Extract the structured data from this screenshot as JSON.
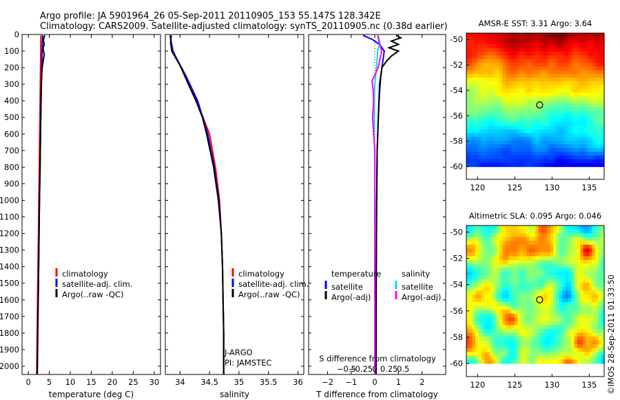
{
  "header": {
    "line1": "Argo profile: JA 5901964_26 05-Sep-2011 20110905_153 55.147S 128.342E",
    "line2": "Climatology: CARS2009. Satellite-adjusted climatology: synTS_20110905.nc (0.38d earlier)"
  },
  "watermark": "©IMOS 28-Sep-2011 01:33:50",
  "colors": {
    "climatology": "#ff0000",
    "satellite": "#0000ff",
    "argo": "#000000",
    "salinity_satellite": "#00e0e0",
    "salinity_argo": "#ff00ff"
  },
  "chart_data": [
    {
      "type": "line",
      "panel": "temperature",
      "xlabel": "temperature (deg C)",
      "xlim": [
        -1.5,
        31.5
      ],
      "xticks": [
        0,
        5,
        10,
        15,
        20,
        25,
        30
      ],
      "xtick_labels": [
        "0",
        "5",
        "10",
        "15",
        "20",
        "25",
        "30"
      ],
      "ylim": [
        0,
        2050
      ],
      "yticks": [
        0,
        100,
        200,
        300,
        400,
        500,
        600,
        700,
        800,
        900,
        1000,
        1100,
        1200,
        1300,
        1400,
        1500,
        1600,
        1700,
        1800,
        1900,
        2000
      ],
      "ytick_labels": [
        "0",
        "100",
        "200",
        "300",
        "400",
        "500",
        "600",
        "700",
        "800",
        "900",
        "1000",
        "1100",
        "1200",
        "1300",
        "1400",
        "1500",
        "1600",
        "1700",
        "1800",
        "1900",
        "2000"
      ],
      "legend": {
        "placement": "middle-right",
        "entries": [
          "climatology",
          "satellite-adj. clim.",
          "Argo(..raw -QC)"
        ]
      },
      "series": [
        {
          "name": "climatology",
          "color": "#ff0000",
          "depth": [
            5,
            100,
            200,
            400,
            600,
            800,
            1000,
            1200,
            1400,
            1600,
            1800,
            2050
          ],
          "values": [
            3.0,
            2.95,
            2.9,
            2.8,
            2.7,
            2.6,
            2.5,
            2.4,
            2.3,
            2.2,
            2.1,
            2.0
          ]
        },
        {
          "name": "satellite-adj. clim.",
          "color": "#0000ff",
          "depth": [
            5,
            100,
            200,
            400,
            600,
            800,
            1000,
            1200,
            1400,
            1600,
            1800,
            2050
          ],
          "values": [
            3.4,
            3.3,
            3.2,
            3.05,
            2.9,
            2.8,
            2.65,
            2.55,
            2.45,
            2.35,
            2.25,
            2.15
          ]
        },
        {
          "name": "Argo(..raw -QC)",
          "color": "#000000",
          "depth": [
            5,
            20,
            40,
            60,
            80,
            100,
            120,
            150,
            200,
            300,
            400,
            600,
            800,
            1000,
            1200,
            1400,
            1600,
            1800,
            2050
          ],
          "values": [
            3.9,
            3.7,
            3.6,
            3.8,
            3.5,
            3.6,
            3.8,
            3.6,
            3.3,
            3.1,
            3.0,
            2.9,
            2.8,
            2.65,
            2.55,
            2.45,
            2.35,
            2.25,
            2.1
          ]
        }
      ]
    },
    {
      "type": "line",
      "panel": "salinity",
      "xlabel": "salinity",
      "xlim": [
        33.75,
        36.1
      ],
      "xticks": [
        34,
        34.5,
        35,
        35.5,
        36
      ],
      "xtick_labels": [
        "34",
        "34.5",
        "35",
        "35.5",
        "36"
      ],
      "ylim": [
        0,
        2050
      ],
      "legend": {
        "placement": "middle-right",
        "entries": [
          "climatology",
          "satellite-adj. clim.",
          "Argo(..raw -QC)"
        ]
      },
      "annotations": [
        "J-ARGO",
        "PI: JAMSTEC"
      ],
      "series": [
        {
          "name": "climatology",
          "color": "#ff0000",
          "depth": [
            5,
            100,
            150,
            250,
            400,
            600,
            800,
            1000,
            1200,
            1400,
            1600,
            1800,
            2050
          ],
          "values": [
            33.83,
            33.87,
            33.95,
            34.08,
            34.28,
            34.5,
            34.6,
            34.67,
            34.7,
            34.72,
            34.73,
            34.74,
            34.74
          ]
        },
        {
          "name": "satellite-adj. clim.",
          "color": "#0000ff",
          "depth": [
            5,
            100,
            150,
            250,
            400,
            600,
            800,
            1000,
            1200,
            1400,
            1600,
            1800,
            2050
          ],
          "values": [
            33.83,
            33.88,
            33.95,
            34.1,
            34.3,
            34.47,
            34.58,
            34.66,
            34.7,
            34.72,
            34.73,
            34.74,
            34.74
          ]
        },
        {
          "name": "Argo(..raw -QC)",
          "color": "#000000",
          "depth": [
            5,
            50,
            100,
            150,
            200,
            250,
            300,
            400,
            500,
            600,
            800,
            1000,
            1200,
            1400,
            1600,
            1800,
            2050
          ],
          "values": [
            33.85,
            33.84,
            33.86,
            33.94,
            34.02,
            34.08,
            34.14,
            34.27,
            34.38,
            34.45,
            34.57,
            34.65,
            34.7,
            34.72,
            34.73,
            34.74,
            34.74
          ]
        }
      ]
    },
    {
      "type": "line",
      "panel": "difference",
      "xlabel": "T difference from climatology",
      "xlim": [
        -2.8,
        3.0
      ],
      "xticks": [
        -2,
        -1,
        0,
        1,
        2
      ],
      "xtick_labels": [
        "−2",
        "−1",
        "0",
        "1",
        "2"
      ],
      "secondary_xlabel": "S difference from climatology",
      "secondary_xticks": [
        -0.5,
        -0.25,
        0,
        0.25,
        0.5
      ],
      "secondary_xtick_labels": [
        "−0.5",
        "−0.25",
        "0",
        "0.25",
        "0.5"
      ],
      "ylim": [
        0,
        2050
      ],
      "legend": {
        "placement": "middle",
        "temperature_title": "temperature",
        "salinity_title": "salinity",
        "entries": [
          "satellite",
          "Argo(-adj)",
          "satellite",
          "Argo(-adj)"
        ]
      },
      "series": [
        {
          "name": "temperature satellite",
          "color": "#0000ff",
          "depth": [
            5,
            30,
            60,
            100,
            150,
            200,
            300,
            500,
            700,
            1000,
            1500,
            2050
          ],
          "values": [
            -0.5,
            -0.1,
            0.2,
            0.4,
            0.35,
            0.3,
            0.2,
            0.15,
            0.1,
            0.08,
            0.06,
            0.05
          ]
        },
        {
          "name": "temperature Argo(-adj)",
          "color": "#000000",
          "depth": [
            5,
            20,
            40,
            60,
            80,
            100,
            130,
            160,
            200,
            260,
            350,
            500,
            700,
            1000,
            1500,
            2050
          ],
          "values": [
            0.9,
            1.1,
            0.7,
            1.0,
            0.6,
            1.0,
            0.7,
            0.5,
            0.3,
            0.25,
            0.2,
            0.15,
            0.1,
            0.08,
            0.06,
            0.05
          ]
        },
        {
          "name": "salinity satellite",
          "color": "#00e0e0",
          "depth": [
            5,
            50,
            100,
            200,
            300,
            400,
            600,
            800,
            1000,
            1500,
            2050
          ],
          "values": [
            0.06,
            0.09,
            0.05,
            0.03,
            0.0,
            -0.01,
            -0.01,
            0.0,
            0.0,
            0.0,
            0.0
          ]
        },
        {
          "name": "salinity Argo(-adj)",
          "color": "#ff00ff",
          "depth": [
            5,
            50,
            100,
            200,
            280,
            330,
            400,
            500,
            600,
            700,
            800,
            1000,
            1500,
            2050
          ],
          "values": [
            0.05,
            0.08,
            0.12,
            0.06,
            -0.05,
            -0.03,
            -0.02,
            -0.04,
            -0.02,
            0.0,
            0.0,
            0.0,
            0.0,
            0.0
          ]
        }
      ]
    },
    {
      "type": "heatmap",
      "panel": "sst_map",
      "title": "AMSR-E SST: 3.31  Argo: 3.64",
      "xlim": [
        118.5,
        137
      ],
      "ylim": [
        -61,
        -49.5
      ],
      "xticks": [
        120,
        125,
        130,
        135
      ],
      "xtick_labels": [
        "120",
        "125",
        "130",
        "135"
      ],
      "yticks": [
        -50,
        -52,
        -54,
        -56,
        -58,
        -60
      ],
      "ytick_labels": [
        "-50",
        "-52",
        "-54",
        "-56",
        "-58",
        "-60"
      ],
      "data_extent": {
        "lon": [
          118.5,
          137
        ],
        "lat": [
          -60,
          -49.5
        ]
      },
      "marker": {
        "lon": 128.34,
        "lat": -55.15
      },
      "colorscale_note": "north warm (red/orange) to south cold (blue)"
    },
    {
      "type": "heatmap",
      "panel": "sla_map",
      "title": "Altimetric SLA: 0.095  Argo: 0.046",
      "xlim": [
        118.5,
        137
      ],
      "ylim": [
        -61,
        -49.5
      ],
      "xticks": [
        120,
        125,
        130,
        135
      ],
      "xtick_labels": [
        "120",
        "125",
        "130",
        "135"
      ],
      "yticks": [
        -50,
        -52,
        -54,
        -56,
        -58,
        -60
      ],
      "ytick_labels": [
        "-50",
        "-52",
        "-54",
        "-56",
        "-58",
        "-60"
      ],
      "data_extent": {
        "lon": [
          118.5,
          137
        ],
        "lat": [
          -60,
          -49.5
        ]
      },
      "marker": {
        "lon": 128.34,
        "lat": -55.15
      },
      "colorscale_note": "mostly green with yellow/orange eddies and blue/cyan patches"
    }
  ]
}
